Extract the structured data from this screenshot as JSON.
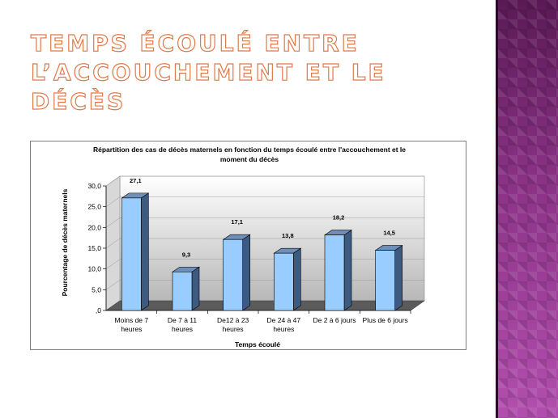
{
  "slide": {
    "title_line1": "Temps écoulé entre",
    "title_line2": "l’accouchement et le décès",
    "accent_color": "#e07a4a",
    "band_color": "#8c3388"
  },
  "chart_data": {
    "type": "bar",
    "title_line1": "Répartition des cas de décès maternels en fonction du temps écoulé entre l'accouchement et le",
    "title_line2": "moment du décès",
    "xlabel": "Temps écoulé",
    "ylabel": "Pourcentage de décès maternels",
    "ylim": [
      0,
      30
    ],
    "yticks": [
      "30,0",
      "25,0",
      "20,0",
      "15,0",
      "10,0",
      "5,0",
      ",0"
    ],
    "ytick_values": [
      30,
      25,
      20,
      15,
      10,
      5,
      0
    ],
    "categories": [
      [
        "Moins de 7",
        "heures"
      ],
      [
        "De 7 à 11",
        "heures"
      ],
      [
        "De12 à 23",
        "heures"
      ],
      [
        "De 24 à 47",
        "heures"
      ],
      [
        "De 2 à 6 jours"
      ],
      [
        "Plus de 6 jours"
      ]
    ],
    "values": [
      27.1,
      9.3,
      17.1,
      13.8,
      18.2,
      14.5
    ],
    "value_labels": [
      "27,1",
      "9,3",
      "17,1",
      "13,8",
      "18,2",
      "14,5"
    ],
    "bar_color": "#99ccff",
    "grid": true,
    "legend": "none"
  }
}
